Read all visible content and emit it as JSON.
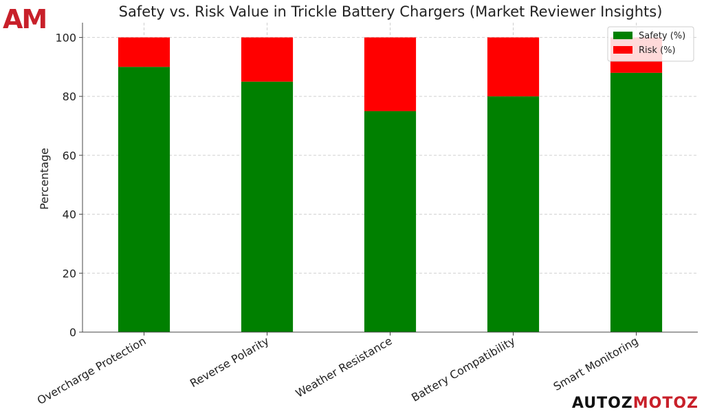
{
  "logo": {
    "text": "AM"
  },
  "watermark": {
    "part1": "AUTOZ",
    "part2": "MOTOZ",
    "accent_color": "#c8202a"
  },
  "chart_data": {
    "type": "bar",
    "stacked": true,
    "title": "Safety vs. Risk Value in Trickle Battery Chargers (Market Reviewer Insights)",
    "xlabel": "",
    "ylabel": "Percentage",
    "categories": [
      "Overcharge Protection",
      "Reverse Polarity",
      "Weather Resistance",
      "Battery Compatibility",
      "Smart Monitoring"
    ],
    "series": [
      {
        "name": "Safety (%)",
        "color": "#008000",
        "values": [
          90,
          85,
          75,
          80,
          88
        ]
      },
      {
        "name": "Risk (%)",
        "color": "#ff0000",
        "values": [
          10,
          15,
          25,
          20,
          12
        ]
      }
    ],
    "ylim": [
      0,
      105
    ],
    "yticks": [
      0,
      20,
      40,
      60,
      80,
      100
    ],
    "grid": true,
    "legend_position": "top-right"
  }
}
